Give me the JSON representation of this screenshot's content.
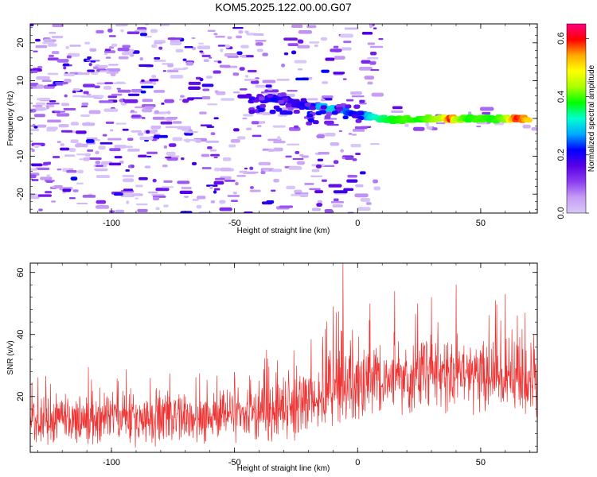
{
  "title": "KOM5.2025.122.00.00.G07",
  "chart_data": [
    {
      "type": "heatmap",
      "name": "spectrogram",
      "xlabel": "Height of straight line (km)",
      "ylabel": "Frequency (Hz)",
      "xlim": [
        -133,
        73
      ],
      "ylim": [
        -25,
        25
      ],
      "x_ticks": [
        -100,
        -50,
        0,
        50
      ],
      "y_ticks": [
        -20,
        -10,
        0,
        10,
        20
      ],
      "colorbar": {
        "label": "Normalized spectral amplitude",
        "range": [
          0.0,
          0.65
        ],
        "ticks": [
          "0.0",
          "0.2",
          "0.4",
          "0.6"
        ],
        "colormap": [
          "#d8c8f8",
          "#c79cf5",
          "#8b3cf0",
          "#5a00e6",
          "#0000ff",
          "#00aaff",
          "#00ffd0",
          "#00ff00",
          "#aaff00",
          "#ffff00",
          "#ffaa00",
          "#ff0000",
          "#ff0080"
        ]
      },
      "ridge": [
        {
          "x": -40,
          "y": 5,
          "v": 0.18
        },
        {
          "x": -35,
          "y": 5.5,
          "v": 0.2
        },
        {
          "x": -30,
          "y": 5,
          "v": 0.2
        },
        {
          "x": -25,
          "y": 4,
          "v": 0.18
        },
        {
          "x": -20,
          "y": 3.5,
          "v": 0.22
        },
        {
          "x": -15,
          "y": 3,
          "v": 0.28
        },
        {
          "x": -10,
          "y": 2.5,
          "v": 0.3
        },
        {
          "x": -5,
          "y": 2,
          "v": 0.25
        },
        {
          "x": 0,
          "y": 1,
          "v": 0.2
        },
        {
          "x": 5,
          "y": 0.5,
          "v": 0.3
        },
        {
          "x": 10,
          "y": 0,
          "v": 0.35
        },
        {
          "x": 15,
          "y": -0.3,
          "v": 0.38
        },
        {
          "x": 20,
          "y": -0.3,
          "v": 0.4
        },
        {
          "x": 25,
          "y": -0.2,
          "v": 0.38
        },
        {
          "x": 30,
          "y": -0.1,
          "v": 0.42
        },
        {
          "x": 35,
          "y": -0.1,
          "v": 0.45
        },
        {
          "x": 38,
          "y": -0.1,
          "v": 0.6
        },
        {
          "x": 40,
          "y": -0.1,
          "v": 0.45
        },
        {
          "x": 45,
          "y": 0,
          "v": 0.38
        },
        {
          "x": 50,
          "y": -0.1,
          "v": 0.4
        },
        {
          "x": 55,
          "y": -0.1,
          "v": 0.38
        },
        {
          "x": 60,
          "y": -0.1,
          "v": 0.42
        },
        {
          "x": 65,
          "y": -0.1,
          "v": 0.6
        },
        {
          "x": 70,
          "y": -0.1,
          "v": 0.5
        }
      ]
    },
    {
      "type": "line",
      "name": "snr",
      "xlabel": "Height of straight line (km)",
      "ylabel": "SNR (v/v)",
      "xlim": [
        -133,
        73
      ],
      "ylim": [
        2,
        63
      ],
      "x_ticks": [
        -100,
        -50,
        0,
        50
      ],
      "y_ticks": [
        20,
        40,
        60
      ],
      "color": "#ee3333",
      "envelope": [
        {
          "x": -133,
          "mean": 12,
          "spread": 9
        },
        {
          "x": -100,
          "mean": 13,
          "spread": 10
        },
        {
          "x": -70,
          "mean": 13,
          "spread": 10
        },
        {
          "x": -40,
          "mean": 15,
          "spread": 11
        },
        {
          "x": -20,
          "mean": 17,
          "spread": 12
        },
        {
          "x": -10,
          "mean": 22,
          "spread": 14
        },
        {
          "x": 0,
          "mean": 24,
          "spread": 14
        },
        {
          "x": 10,
          "mean": 25,
          "spread": 14
        },
        {
          "x": 30,
          "mean": 28,
          "spread": 14
        },
        {
          "x": 50,
          "mean": 27,
          "spread": 14
        },
        {
          "x": 73,
          "mean": 26,
          "spread": 14
        }
      ],
      "peaks": [
        {
          "x": -6,
          "y": 63
        },
        {
          "x": -10,
          "y": 49
        },
        {
          "x": 5,
          "y": 50
        },
        {
          "x": 15,
          "y": 54
        },
        {
          "x": 30,
          "y": 52
        },
        {
          "x": 40,
          "y": 56
        },
        {
          "x": 60,
          "y": 53
        },
        {
          "x": 68,
          "y": 47
        }
      ]
    }
  ]
}
